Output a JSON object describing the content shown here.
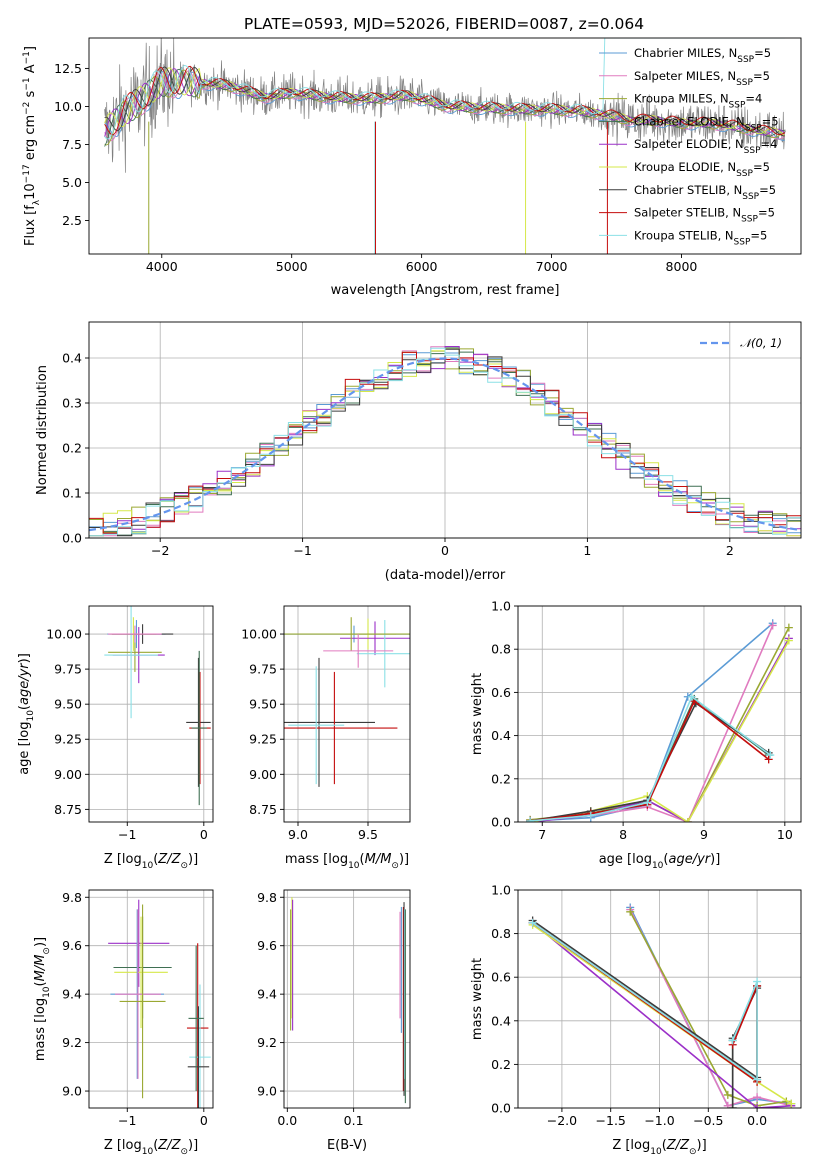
{
  "colors": [
    "#5b9bd5",
    "#e07bbf",
    "#9aa832",
    "#3f6f52",
    "#9b30c8",
    "#d6e84a",
    "#3c3c3c",
    "#c40d0d",
    "#8be0e6"
  ],
  "spectrum_color": "#808080",
  "gaussian_color": "#6495ed",
  "figure_title": "PLATE=0593, MJD=52026, FIBERID=0087, z=0.064",
  "chart_data": [
    {
      "id": "spectrum",
      "type": "line",
      "xlabel": "wavelength [Angstrom, rest frame]",
      "ylabel_parts": [
        "Flux [f",
        "λ",
        "10",
        "−17",
        " erg cm",
        "−2",
        " s",
        "−1",
        " A",
        "−1",
        "]"
      ],
      "xlim": [
        3440,
        8920
      ],
      "ylim": [
        0.3,
        14.5
      ],
      "xticks": [
        4000,
        5000,
        6000,
        7000,
        8000
      ],
      "yticks": [
        2.5,
        5.0,
        7.5,
        10.0,
        12.5
      ],
      "ytick_labels": [
        "2.5",
        "5.0",
        "7.5",
        "10.0",
        "12.5"
      ],
      "legend": [
        {
          "name": "Chabrier MILES",
          "n": "5"
        },
        {
          "name": "Salpeter MILES",
          "n": "5"
        },
        {
          "name": "Kroupa MILES",
          "n": "4"
        },
        {
          "name": "Chabrier ELODIE",
          "n": "5"
        },
        {
          "name": "Salpeter ELODIE",
          "n": "4"
        },
        {
          "name": "Kroupa ELODIE",
          "n": "5"
        },
        {
          "name": "Chabrier STELIB",
          "n": "5"
        },
        {
          "name": "Salpeter STELIB",
          "n": "5"
        },
        {
          "name": "Kroupa STELIB",
          "n": "5"
        }
      ],
      "legend_prefix": "N",
      "legend_sub": "SSP",
      "continuum_x": [
        3550,
        3700,
        3850,
        4000,
        4200,
        4500,
        4800,
        5000,
        5300,
        5600,
        5900,
        6200,
        6500,
        6800,
        7000,
        7200,
        7400,
        7600,
        7800,
        8000,
        8200,
        8400,
        8600,
        8800
      ],
      "continuum_y": [
        8.2,
        9.5,
        10.5,
        11.6,
        11.6,
        11.4,
        10.6,
        10.9,
        10.6,
        10.5,
        10.7,
        10.0,
        9.9,
        9.8,
        9.8,
        9.7,
        9.5,
        9.1,
        9.1,
        8.9,
        8.9,
        8.7,
        8.4,
        8.2
      ]
    },
    {
      "id": "residuals",
      "type": "line",
      "xlabel": "(data-model)/error",
      "ylabel": "Normed distribution",
      "xlim": [
        -2.5,
        2.5
      ],
      "ylim": [
        0,
        0.48
      ],
      "xticks": [
        -2,
        -1,
        0,
        1,
        2
      ],
      "xtick_labels": [
        "−2",
        "−1",
        "0",
        "1",
        "2"
      ],
      "yticks": [
        0.0,
        0.1,
        0.2,
        0.3,
        0.4
      ],
      "ytick_labels": [
        "0.0",
        "0.1",
        "0.2",
        "0.3",
        "0.4"
      ],
      "legend": "𝒩(0, 1)",
      "bin_width": 0.1
    },
    {
      "id": "age-vs-Z",
      "type": "errorbar",
      "xlabel": "Z [log10(Z/Z⊙)]",
      "ylabel": "age  [log10(age/yr)]",
      "xlim": [
        -1.5,
        0.12
      ],
      "ylim": [
        8.66,
        10.2
      ],
      "xticks": [
        -1,
        0
      ],
      "xtick_labels": [
        "−1",
        "0"
      ],
      "yticks": [
        8.75,
        9.0,
        9.25,
        9.5,
        9.75,
        10.0
      ],
      "ytick_labels": [
        "8.75",
        "9.00",
        "9.25",
        "9.50",
        "9.75",
        "10.00"
      ],
      "points": [
        {
          "x": -0.88,
          "xerr": 0.38,
          "y": 10.0,
          "yerr": 0.1,
          "c": 0
        },
        {
          "x": -0.9,
          "xerr": 0.35,
          "y": 9.87,
          "yerr": 0.14,
          "c": 2
        },
        {
          "x": -0.92,
          "xerr": 0.3,
          "y": 10.0,
          "yerr": 0.12,
          "c": 5
        },
        {
          "x": -0.85,
          "xerr": 0.34,
          "y": 9.85,
          "yerr": 0.2,
          "c": 4
        },
        {
          "x": -0.95,
          "xerr": 0.35,
          "y": 9.85,
          "yerr": 0.45,
          "c": 8
        },
        {
          "x": -0.8,
          "xerr": 0.4,
          "y": 10.0,
          "yerr": 0.07,
          "c": 6
        },
        {
          "x": -0.9,
          "xerr": 0.35,
          "y": 10.0,
          "yerr": 0.06,
          "c": 1
        },
        {
          "x": -0.07,
          "xerr": 0.16,
          "y": 9.37,
          "yerr": 0.46,
          "c": 6
        },
        {
          "x": -0.05,
          "xerr": 0.14,
          "y": 9.33,
          "yerr": 0.4,
          "c": 7
        },
        {
          "x": -0.06,
          "xerr": 0.1,
          "y": 9.33,
          "yerr": 0.55,
          "c": 3
        }
      ]
    },
    {
      "id": "age-vs-mass",
      "type": "errorbar",
      "xlabel": "mass [log10(M/M⊙)]",
      "xlim": [
        8.9,
        9.8
      ],
      "ylim": [
        8.66,
        10.2
      ],
      "xticks": [
        9.0,
        9.5
      ],
      "xtick_labels": [
        "9.0",
        "9.5"
      ],
      "yticks": [
        8.75,
        9.0,
        9.25,
        9.5,
        9.75,
        10.0
      ],
      "ytick_labels": [
        "8.75",
        "9.00",
        "9.25",
        "9.50",
        "9.75",
        "10.00"
      ],
      "points": [
        {
          "x": 9.4,
          "xerr": 0.5,
          "y": 10.0,
          "yerr": 0.06,
          "c": 0
        },
        {
          "x": 9.5,
          "xerr": 0.2,
          "y": 10.0,
          "yerr": 0.11,
          "c": 5
        },
        {
          "x": 9.55,
          "xerr": 0.25,
          "y": 9.97,
          "yerr": 0.12,
          "c": 4
        },
        {
          "x": 9.62,
          "xerr": 0.2,
          "y": 9.86,
          "yerr": 0.24,
          "c": 8
        },
        {
          "x": 9.38,
          "xerr": 0.5,
          "y": 10.0,
          "yerr": 0.12,
          "c": 2
        },
        {
          "x": 9.15,
          "xerr": 0.4,
          "y": 9.37,
          "yerr": 0.46,
          "c": 6
        },
        {
          "x": 9.26,
          "xerr": 0.45,
          "y": 9.33,
          "yerr": 0.4,
          "c": 7
        },
        {
          "x": 9.13,
          "xerr": 0.2,
          "y": 9.35,
          "yerr": 0.42,
          "c": 8
        },
        {
          "x": 9.43,
          "xerr": 0.25,
          "y": 9.88,
          "yerr": 0.12,
          "c": 1
        }
      ]
    },
    {
      "id": "mass-weight-vs-age",
      "type": "line",
      "xlabel": "age  [log10(age/yr)]",
      "ylabel": "mass weight",
      "xlim": [
        6.7,
        10.2
      ],
      "ylim": [
        0,
        1
      ],
      "xticks": [
        7,
        8,
        9,
        10
      ],
      "yticks": [
        0,
        0.2,
        0.4,
        0.6,
        0.8,
        1.0
      ],
      "ytick_labels": [
        "0.0",
        "0.2",
        "0.4",
        "0.6",
        "0.8",
        "1.0"
      ],
      "series": [
        {
          "c": 0,
          "x": [
            6.85,
            7.6,
            8.3,
            8.8,
            9.85
          ],
          "y": [
            0.005,
            0.02,
            0.08,
            0.58,
            0.92
          ]
        },
        {
          "c": 1,
          "x": [
            6.85,
            7.6,
            8.3,
            8.8,
            9.85
          ],
          "y": [
            0.01,
            0.03,
            0.07,
            0.0,
            0.91
          ]
        },
        {
          "c": 2,
          "x": [
            6.85,
            7.6,
            8.3,
            8.8,
            10.05
          ],
          "y": [
            0.01,
            0.04,
            0.1,
            0.0,
            0.9
          ]
        },
        {
          "c": 3,
          "x": [
            6.85,
            7.6,
            8.3,
            8.88,
            9.8
          ],
          "y": [
            0.005,
            0.04,
            0.09,
            0.57,
            0.31
          ]
        },
        {
          "c": 4,
          "x": [
            6.85,
            7.6,
            8.3,
            8.8,
            10.05
          ],
          "y": [
            0.0,
            0.03,
            0.1,
            0.0,
            0.85
          ]
        },
        {
          "c": 5,
          "x": [
            6.85,
            7.6,
            8.3,
            8.8,
            10.05
          ],
          "y": [
            0.0,
            0.05,
            0.12,
            0.0,
            0.84
          ]
        },
        {
          "c": 6,
          "x": [
            6.85,
            7.6,
            8.3,
            8.9,
            9.8
          ],
          "y": [
            0.005,
            0.05,
            0.1,
            0.55,
            0.32
          ]
        },
        {
          "c": 7,
          "x": [
            6.85,
            7.6,
            8.3,
            8.88,
            9.8
          ],
          "y": [
            0.005,
            0.04,
            0.08,
            0.56,
            0.29
          ]
        },
        {
          "c": 8,
          "x": [
            6.85,
            7.6,
            8.3,
            8.85,
            9.82
          ],
          "y": [
            0.005,
            0.03,
            0.09,
            0.58,
            0.31
          ]
        }
      ]
    },
    {
      "id": "mass-vs-Z",
      "type": "errorbar",
      "xlabel": "Z [log10(Z/Z⊙)]",
      "ylabel": "mass [log10(M/M⊙)]",
      "xlim": [
        -1.5,
        0.12
      ],
      "ylim": [
        8.93,
        9.83
      ],
      "xticks": [
        -1,
        0
      ],
      "xtick_labels": [
        "−1",
        "0"
      ],
      "yticks": [
        9.0,
        9.2,
        9.4,
        9.6,
        9.8
      ],
      "ytick_labels": [
        "9.0",
        "9.2",
        "9.4",
        "9.6",
        "9.8"
      ],
      "points": [
        {
          "x": -0.85,
          "xerr": 0.4,
          "y": 9.61,
          "yerr": 0.18,
          "c": 4
        },
        {
          "x": -0.8,
          "xerr": 0.38,
          "y": 9.51,
          "yerr": 0.21,
          "c": 3
        },
        {
          "x": -0.82,
          "xerr": 0.35,
          "y": 9.49,
          "yerr": 0.23,
          "c": 5
        },
        {
          "x": -0.87,
          "xerr": 0.35,
          "y": 9.4,
          "yerr": 0.35,
          "c": 0
        },
        {
          "x": -0.86,
          "xerr": 0.3,
          "y": 9.4,
          "yerr": 0.35,
          "c": 1
        },
        {
          "x": -0.8,
          "xerr": 0.3,
          "y": 9.37,
          "yerr": 0.4,
          "c": 2
        },
        {
          "x": -0.08,
          "xerr": 0.14,
          "y": 9.26,
          "yerr": 0.35,
          "c": 7
        },
        {
          "x": -0.05,
          "xerr": 0.14,
          "y": 9.14,
          "yerr": 0.3,
          "c": 8
        },
        {
          "x": -0.07,
          "xerr": 0.14,
          "y": 9.1,
          "yerr": 0.25,
          "c": 6
        },
        {
          "x": -0.1,
          "xerr": 0.1,
          "y": 9.3,
          "yerr": 0.3,
          "c": 3
        }
      ]
    },
    {
      "id": "mass-vs-ebv",
      "type": "errorbar",
      "xlabel": "E(B-V)",
      "xlim": [
        -0.005,
        0.185
      ],
      "ylim": [
        8.93,
        9.83
      ],
      "xticks": [
        0.0,
        0.1
      ],
      "xtick_labels": [
        "0.0",
        "0.1"
      ],
      "yticks": [
        9.0,
        9.2,
        9.4,
        9.6,
        9.8
      ],
      "ytick_labels": [
        "9.0",
        "9.2",
        "9.4",
        "9.6",
        "9.8"
      ],
      "points": [
        {
          "x": 0.005,
          "y": 9.5,
          "yerr": 0.25,
          "c": 2
        },
        {
          "x": 0.007,
          "y": 9.55,
          "yerr": 0.25,
          "c": 5
        },
        {
          "x": 0.008,
          "y": 9.52,
          "yerr": 0.27,
          "c": 4
        },
        {
          "x": 0.17,
          "y": 9.52,
          "yerr": 0.22,
          "c": 1
        },
        {
          "x": 0.172,
          "y": 9.5,
          "yerr": 0.26,
          "c": 0
        },
        {
          "x": 0.175,
          "y": 9.38,
          "yerr": 0.38,
          "c": 7
        },
        {
          "x": 0.176,
          "y": 9.38,
          "yerr": 0.4,
          "c": 6
        },
        {
          "x": 0.177,
          "y": 9.4,
          "yerr": 0.35,
          "c": 8
        },
        {
          "x": 0.178,
          "y": 9.35,
          "yerr": 0.4,
          "c": 3
        }
      ]
    },
    {
      "id": "mass-weight-vs-Z",
      "type": "line",
      "xlabel": "Z [log10(Z/Z⊙)]",
      "ylabel": "mass weight",
      "xlim": [
        -2.45,
        0.45
      ],
      "ylim": [
        0,
        1
      ],
      "xticks": [
        -2.0,
        -1.5,
        -1.0,
        -0.5,
        0.0
      ],
      "xtick_labels": [
        "−2.0",
        "−1.5",
        "−1.0",
        "−0.5",
        "0.0"
      ],
      "yticks": [
        0,
        0.2,
        0.4,
        0.6,
        0.8,
        1.0
      ],
      "ytick_labels": [
        "0.0",
        "0.2",
        "0.4",
        "0.6",
        "0.8",
        "1.0"
      ],
      "series": [
        {
          "c": 0,
          "x": [
            -1.3,
            -0.3,
            0.0,
            0.35
          ],
          "y": [
            0.92,
            0.01,
            0.04,
            0.02
          ]
        },
        {
          "c": 1,
          "x": [
            -1.3,
            -0.3,
            0.0,
            0.35
          ],
          "y": [
            0.91,
            0.01,
            0.05,
            0.01
          ]
        },
        {
          "c": 2,
          "x": [
            -1.3,
            -0.3,
            0.0,
            0.3
          ],
          "y": [
            0.9,
            0.06,
            0.01,
            0.03
          ]
        },
        {
          "c": 3,
          "x": [
            -2.3,
            0.0,
            0.0,
            -0.25,
            -0.25
          ],
          "y": [
            0.85,
            0.13,
            0.56,
            0.31,
            0.0
          ]
        },
        {
          "c": 4,
          "x": [
            -2.3,
            0.0,
            0.35
          ],
          "y": [
            0.85,
            0.0,
            0.01
          ]
        },
        {
          "c": 5,
          "x": [
            -2.3,
            0.0,
            0.35
          ],
          "y": [
            0.84,
            0.12,
            0.02
          ]
        },
        {
          "c": 6,
          "x": [
            -2.3,
            0.0,
            0.0,
            -0.25,
            -0.25
          ],
          "y": [
            0.86,
            0.14,
            0.55,
            0.32,
            0.0
          ]
        },
        {
          "c": 7,
          "x": [
            -2.3,
            0.0,
            0.0,
            -0.25
          ],
          "y": [
            0.85,
            0.12,
            0.56,
            0.29
          ]
        },
        {
          "c": 8,
          "x": [
            -2.3,
            0.0,
            0.0,
            -0.25
          ],
          "y": [
            0.85,
            0.13,
            0.58,
            0.31
          ]
        }
      ]
    }
  ]
}
